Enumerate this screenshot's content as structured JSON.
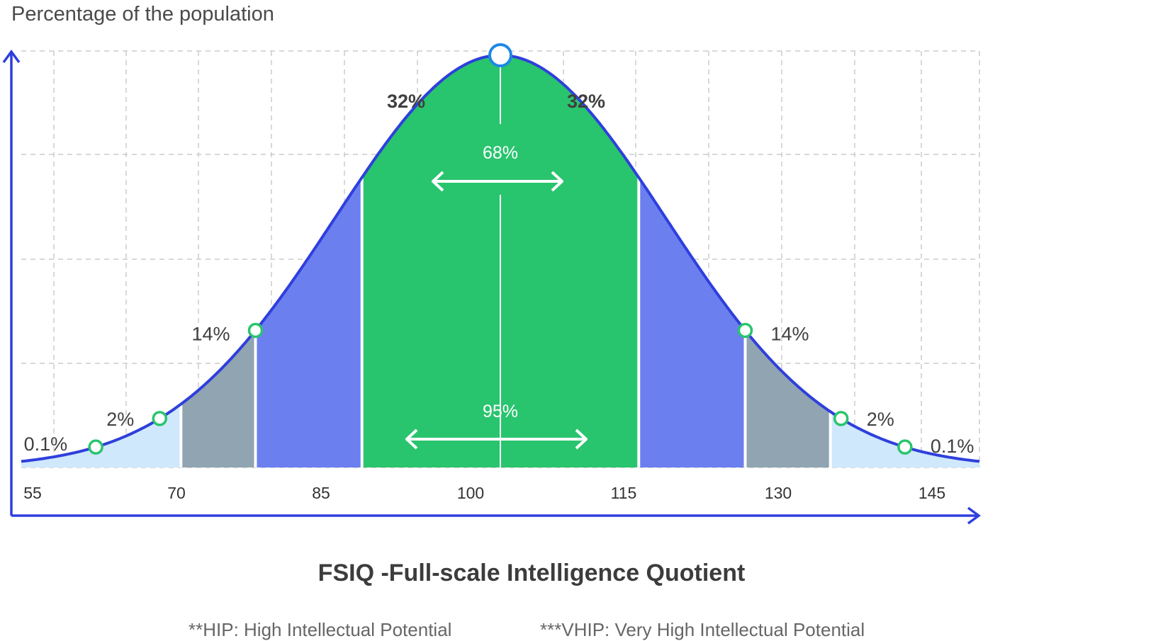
{
  "chart_data": {
    "type": "area",
    "title": "FSIQ -Full-scale Intelligence Quotient",
    "ylabel": "Percentage of the population",
    "xlabel": "FSIQ -Full-scale Intelligence Quotient",
    "x_ticks": [
      "55",
      "70",
      "85",
      "100",
      "115",
      "130",
      "145"
    ],
    "xlim": [
      55,
      145
    ],
    "grid": true,
    "peak_x": 100,
    "band_labels": [
      {
        "x": 62,
        "text": "0.1%"
      },
      {
        "x": 68,
        "text": "2%"
      },
      {
        "x": 77,
        "text": "14%"
      },
      {
        "x": 94,
        "text": "32%"
      },
      {
        "x": 106,
        "text": "32%"
      },
      {
        "x": 123,
        "text": "14%"
      },
      {
        "x": 132,
        "text": "2%"
      },
      {
        "x": 138,
        "text": "0.1%"
      }
    ],
    "intervals": [
      {
        "label": "68%",
        "from": 85,
        "to": 115
      },
      {
        "label": "95%",
        "from": 70,
        "to": 130
      }
    ],
    "colors": {
      "curve": "#2f3fdc",
      "outer_tail": "#cfe8fb",
      "gray_band": "#90a4b2",
      "blue_band": "#6b7fef",
      "center_band": "#29c46e",
      "marker": "#29c46e",
      "peak_marker": "#1e88e5",
      "axis": "#2f3fdc",
      "grid": "#cccccc"
    }
  },
  "footnotes": {
    "hip": "**HIP: High Intellectual Potential",
    "vhip": "***VHIP: Very High Intellectual Potential"
  }
}
